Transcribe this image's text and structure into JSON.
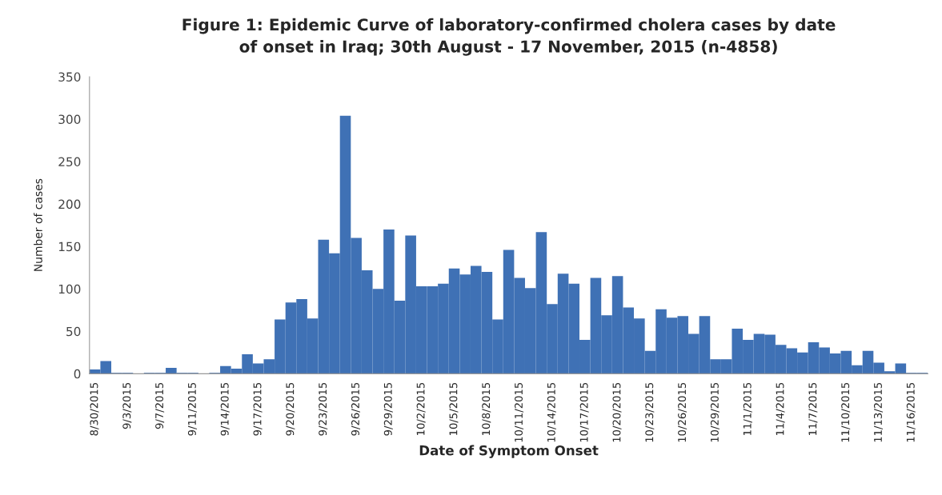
{
  "chart_data": {
    "type": "bar",
    "title": "Figure 1: Epidemic Curve of laboratory-confirmed cholera cases by date\nof onset in Iraq; 30th August - 17 November, 2015 (n-4858)",
    "xlabel": "Date of Symptom Onset",
    "ylabel": "Number of cases",
    "categories": [
      "8/30/2015",
      null,
      null,
      "9/3/2015",
      null,
      null,
      "9/7/2015",
      null,
      null,
      "9/11/2015",
      null,
      null,
      "9/14/2015",
      null,
      null,
      "9/17/2015",
      null,
      null,
      "9/20/2015",
      null,
      null,
      "9/23/2015",
      null,
      null,
      "9/26/2015",
      null,
      null,
      "9/29/2015",
      null,
      null,
      "10/2/2015",
      null,
      null,
      "10/5/2015",
      null,
      null,
      "10/8/2015",
      null,
      null,
      "10/11/2015",
      null,
      null,
      "10/14/2015",
      null,
      null,
      "10/17/2015",
      null,
      null,
      "10/20/2015",
      null,
      null,
      "10/23/2015",
      null,
      null,
      "10/26/2015",
      null,
      null,
      "10/29/2015",
      null,
      null,
      "11/1/2015",
      null,
      null,
      "11/4/2015",
      null,
      null,
      "11/7/2015",
      null,
      null,
      "11/10/2015",
      null,
      null,
      "11/13/2015",
      null,
      null,
      "11/16/2015",
      null
    ],
    "values": [
      5,
      15,
      1,
      1,
      0,
      1,
      1,
      7,
      1,
      1,
      0,
      1,
      9,
      6,
      23,
      12,
      17,
      64,
      84,
      88,
      65,
      158,
      142,
      304,
      160,
      122,
      100,
      170,
      86,
      163,
      103,
      103,
      106,
      124,
      117,
      127,
      120,
      64,
      146,
      113,
      101,
      167,
      82,
      118,
      106,
      40,
      113,
      69,
      115,
      78,
      65,
      27,
      76,
      66,
      68,
      47,
      68,
      17,
      17,
      53,
      40,
      47,
      46,
      34,
      30,
      25,
      37,
      31,
      24,
      27,
      10,
      27,
      13,
      3,
      12,
      1,
      1
    ],
    "color": "#3f71b5",
    "ylim": [
      0,
      350
    ],
    "yticks": [
      0,
      50,
      100,
      150,
      200,
      250,
      300,
      350
    ]
  }
}
